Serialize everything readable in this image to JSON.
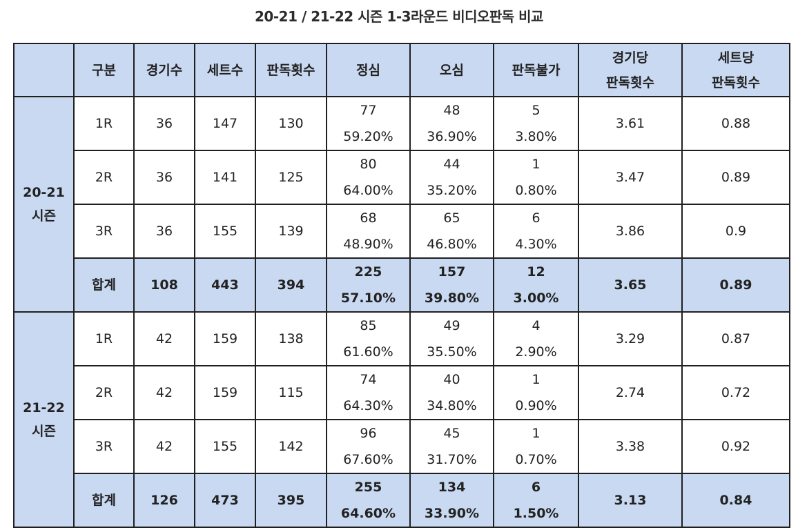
{
  "title": "20-21 / 21-22 시즌 1-3라운드 비디오판독 비교",
  "headers": [
    {
      "l1": "",
      "l2": ""
    },
    {
      "l1": "구분",
      "l2": ""
    },
    {
      "l1": "경기수",
      "l2": ""
    },
    {
      "l1": "세트수",
      "l2": ""
    },
    {
      "l1": "판독횟수",
      "l2": ""
    },
    {
      "l1": "정심",
      "l2": ""
    },
    {
      "l1": "오심",
      "l2": ""
    },
    {
      "l1": "판독불가",
      "l2": ""
    },
    {
      "l1": "경기당",
      "l2": "판독횟수"
    },
    {
      "l1": "세트당",
      "l2": "판독횟수"
    }
  ],
  "seasons": [
    {
      "name_l1": "20-21",
      "name_l2": "시즌",
      "rows": [
        {
          "round": "1R",
          "games": "36",
          "sets": "147",
          "reviews": "130",
          "correct": "77",
          "correct_pct": "59.20%",
          "wrong": "48",
          "wrong_pct": "36.90%",
          "undecidable": "5",
          "undecidable_pct": "3.80%",
          "per_game": "3.61",
          "per_set": "0.88"
        },
        {
          "round": "2R",
          "games": "36",
          "sets": "141",
          "reviews": "125",
          "correct": "80",
          "correct_pct": "64.00%",
          "wrong": "44",
          "wrong_pct": "35.20%",
          "undecidable": "1",
          "undecidable_pct": "0.80%",
          "per_game": "3.47",
          "per_set": "0.89"
        },
        {
          "round": "3R",
          "games": "36",
          "sets": "155",
          "reviews": "139",
          "correct": "68",
          "correct_pct": "48.90%",
          "wrong": "65",
          "wrong_pct": "46.80%",
          "undecidable": "6",
          "undecidable_pct": "4.30%",
          "per_game": "3.86",
          "per_set": "0.9"
        },
        {
          "round": "합계",
          "games": "108",
          "sets": "443",
          "reviews": "394",
          "correct": "225",
          "correct_pct": "57.10%",
          "wrong": "157",
          "wrong_pct": "39.80%",
          "undecidable": "12",
          "undecidable_pct": "3.00%",
          "per_game": "3.65",
          "per_set": "0.89"
        }
      ]
    },
    {
      "name_l1": "21-22",
      "name_l2": "시즌",
      "rows": [
        {
          "round": "1R",
          "games": "42",
          "sets": "159",
          "reviews": "138",
          "correct": "85",
          "correct_pct": "61.60%",
          "wrong": "49",
          "wrong_pct": "35.50%",
          "undecidable": "4",
          "undecidable_pct": "2.90%",
          "per_game": "3.29",
          "per_set": "0.87"
        },
        {
          "round": "2R",
          "games": "42",
          "sets": "159",
          "reviews": "115",
          "correct": "74",
          "correct_pct": "64.30%",
          "wrong": "40",
          "wrong_pct": "34.80%",
          "undecidable": "1",
          "undecidable_pct": "0.90%",
          "per_game": "2.74",
          "per_set": "0.72"
        },
        {
          "round": "3R",
          "games": "42",
          "sets": "155",
          "reviews": "142",
          "correct": "96",
          "correct_pct": "67.60%",
          "wrong": "45",
          "wrong_pct": "31.70%",
          "undecidable": "1",
          "undecidable_pct": "0.70%",
          "per_game": "3.38",
          "per_set": "0.92"
        },
        {
          "round": "합계",
          "games": "126",
          "sets": "473",
          "reviews": "395",
          "correct": "255",
          "correct_pct": "64.60%",
          "wrong": "134",
          "wrong_pct": "33.90%",
          "undecidable": "6",
          "undecidable_pct": "1.50%",
          "per_game": "3.13",
          "per_set": "0.84"
        }
      ]
    }
  ],
  "colors": {
    "header_bg": "#c9d9f1",
    "border": "#1f1f1f"
  }
}
